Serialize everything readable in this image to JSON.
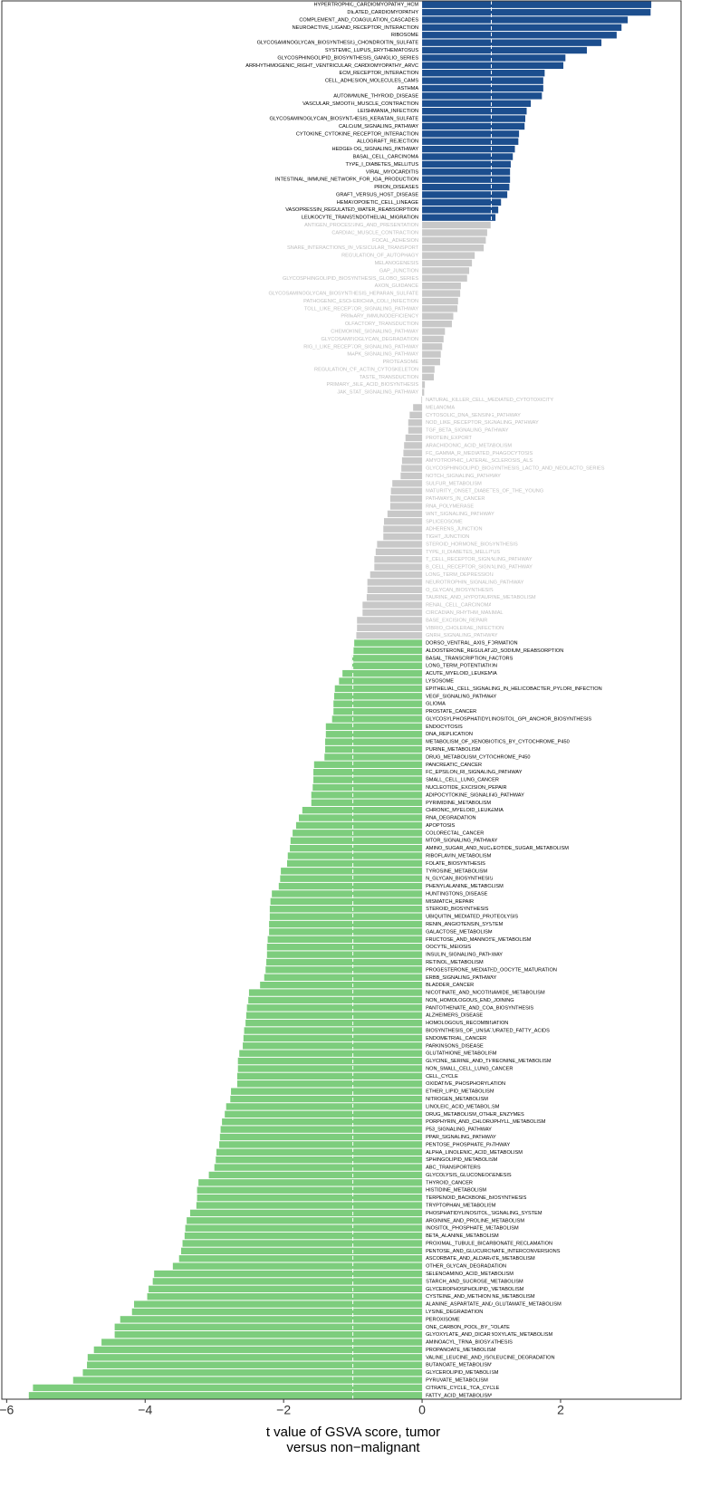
{
  "chart_data": {
    "type": "barh",
    "xlabel": [
      "t value of GSVA score, tumor",
      "versus non−malignant"
    ],
    "xlim": [
      -6.07,
      3.74
    ],
    "xticks": [
      {
        "value": -6,
        "label": "−6"
      },
      {
        "value": -4,
        "label": "−4"
      },
      {
        "value": -2,
        "label": "−2"
      },
      0,
      2
    ],
    "reference_lines": [
      -1,
      1
    ],
    "categories": [
      "HYPERTROPHIC_CARDIOMYOPATHY_HCM",
      "DILATED_CARDIOMYOPATHY",
      "COMPLEMENT_AND_COAGULATION_CASCADES",
      "NEUROACTIVE_LIGAND_RECEPTOR_INTERACTION",
      "RIBOSOME",
      "GLYCOSAMINOGLYCAN_BIOSYNTHESIS_CHONDROITIN_SULFATE",
      "SYSTEMIC_LUPUS_ERYTHEMATOSUS",
      "GLYCOSPHINGOLIPID_BIOSYNTHESIS_GANGLIO_SERIES",
      "ARRHYTHMOGENIC_RIGHT_VENTRICULAR_CARDIOMYOPATHY_ARVC",
      "ECM_RECEPTOR_INTERACTION",
      "CELL_ADHESION_MOLECULES_CAMS",
      "ASTHMA",
      "AUTOIMMUNE_THYROID_DISEASE",
      "VASCULAR_SMOOTH_MUSCLE_CONTRACTION",
      "LEISHMANIA_INFECTION",
      "GLYCOSAMINOGLYCAN_BIOSYNTHESIS_KERATAN_SULFATE",
      "CALCIUM_SIGNALING_PATHWAY",
      "CYTOKINE_CYTOKINE_RECEPTOR_INTERACTION",
      "ALLOGRAFT_REJECTION",
      "HEDGEHOG_SIGNALING_PATHWAY",
      "BASAL_CELL_CARCINOMA",
      "TYPE_I_DIABETES_MELLITUS",
      "VIRAL_MYOCARDITIS",
      "INTESTINAL_IMMUNE_NETWORK_FOR_IGA_PRODUCTION",
      "PRION_DISEASES",
      "GRAFT_VERSUS_HOST_DISEASE",
      "HEMATOPOIETIC_CELL_LINEAGE",
      "VASOPRESSIN_REGULATED_WATER_REABSORPTION",
      "LEUKOCYTE_TRANSENDOTHELIAL_MIGRATION",
      "ANTIGEN_PROCESSING_AND_PRESENTATION",
      "CARDIAC_MUSCLE_CONTRACTION",
      "FOCAL_ADHESION",
      "SNARE_INTERACTIONS_IN_VESICULAR_TRANSPORT",
      "REGULATION_OF_AUTOPHAGY",
      "MELANOGENESIS",
      "GAP_JUNCTION",
      "GLYCOSPHINGOLIPID_BIOSYNTHESIS_GLOBO_SERIES",
      "AXON_GUIDANCE",
      "GLYCOSAMINOGLYCAN_BIOSYNTHESIS_HEPARAN_SULFATE",
      "PATHOGENIC_ESCHERICHIA_COLI_INFECTION",
      "TOLL_LIKE_RECEPTOR_SIGNALING_PATHWAY",
      "PRIMARY_IMMUNODEFICIENCY",
      "OLFACTORY_TRANSDUCTION",
      "CHEMOKINE_SIGNALING_PATHWAY",
      "GLYCOSAMINOGLYCAN_DEGRADATION",
      "RIG_I_LIKE_RECEPTOR_SIGNALING_PATHWAY",
      "MAPK_SIGNALING_PATHWAY",
      "PROTEASOME",
      "REGULATION_OF_ACTIN_CYTOSKELETON",
      "TASTE_TRANSDUCTION",
      "PRIMARY_BILE_ACID_BIOSYNTHESIS",
      "JAK_STAT_SIGNALING_PATHWAY",
      "NATURAL_KILLER_CELL_MEDIATED_CYTOTOXICITY",
      "MELANOMA",
      "CYTOSOLIC_DNA_SENSING_PATHWAY",
      "NOD_LIKE_RECEPTOR_SIGNALING_PATHWAY",
      "TGF_BETA_SIGNALING_PATHWAY",
      "PROTEIN_EXPORT",
      "ARACHIDONIC_ACID_METABOLISM",
      "FC_GAMMA_R_MEDIATED_PHAGOCYTOSIS",
      "AMYOTROPHIC_LATERAL_SCLEROSIS_ALS",
      "GLYCOSPHINGOLIPID_BIOSYNTHESIS_LACTO_AND_NEOLACTO_SERIES",
      "NOTCH_SIGNALING_PATHWAY",
      "SULFUR_METABOLISM",
      "MATURITY_ONSET_DIABETES_OF_THE_YOUNG",
      "PATHWAYS_IN_CANCER",
      "RNA_POLYMERASE",
      "WNT_SIGNALING_PATHWAY",
      "SPLICEOSOME",
      "ADHERENS_JUNCTION",
      "TIGHT_JUNCTION",
      "STEROID_HORMONE_BIOSYNTHESIS",
      "TYPE_II_DIABETES_MELLITUS",
      "T_CELL_RECEPTOR_SIGNALING_PATHWAY",
      "B_CELL_RECEPTOR_SIGNALING_PATHWAY",
      "LONG_TERM_DEPRESSION",
      "NEUROTROPHIN_SIGNALING_PATHWAY",
      "O_GLYCAN_BIOSYNTHESIS",
      "TAURINE_AND_HYPOTAURINE_METABOLISM",
      "RENAL_CELL_CARCINOMA",
      "CIRCADIAN_RHYTHM_MAMMAL",
      "BASE_EXCISION_REPAIR",
      "VIBRIO_CHOLERAE_INFECTION",
      "GNRH_SIGNALING_PATHWAY",
      "DORSO_VENTRAL_AXIS_FORMATION",
      "ALDOSTERONE_REGULATED_SODIUM_REABSORPTION",
      "BASAL_TRANSCRIPTION_FACTORS",
      "LONG_TERM_POTENTIATION",
      "ACUTE_MYELOID_LEUKEMIA",
      "LYSOSOME",
      "EPITHELIAL_CELL_SIGNALING_IN_HELICOBACTER_PYLORI_INFECTION",
      "VEGF_SIGNALING_PATHWAY",
      "GLIOMA",
      "PROSTATE_CANCER",
      "GLYCOSYLPHOSPHATIDYLINOSITOL_GPI_ANCHOR_BIOSYNTHESIS",
      "ENDOCYTOSIS",
      "DNA_REPLICATION",
      "METABOLISM_OF_XENOBIOTICS_BY_CYTOCHROME_P450",
      "PURINE_METABOLISM",
      "DRUG_METABOLISM_CYTOCHROME_P450",
      "PANCREATIC_CANCER",
      "FC_EPSILON_RI_SIGNALING_PATHWAY",
      "SMALL_CELL_LUNG_CANCER",
      "NUCLEOTIDE_EXCISION_REPAIR",
      "ADIPOCYTOKINE_SIGNALING_PATHWAY",
      "PYRIMIDINE_METABOLISM",
      "CHRONIC_MYELOID_LEUKEMIA",
      "RNA_DEGRADATION",
      "APOPTOSIS",
      "COLORECTAL_CANCER",
      "MTOR_SIGNALING_PATHWAY",
      "AMINO_SUGAR_AND_NUCLEOTIDE_SUGAR_METABOLISM",
      "RIBOFLAVIN_METABOLISM",
      "FOLATE_BIOSYNTHESIS",
      "TYROSINE_METABOLISM",
      "N_GLYCAN_BIOSYNTHESIS",
      "PHENYLALANINE_METABOLISM",
      "HUNTINGTONS_DISEASE",
      "MISMATCH_REPAIR",
      "STEROID_BIOSYNTHESIS",
      "UBIQUITIN_MEDIATED_PROTEOLYSIS",
      "RENIN_ANGIOTENSIN_SYSTEM",
      "GALACTOSE_METABOLISM",
      "FRUCTOSE_AND_MANNOSE_METABOLISM",
      "OOCYTE_MEIOSIS",
      "INSULIN_SIGNALING_PATHWAY",
      "RETINOL_METABOLISM",
      "PROGESTERONE_MEDIATED_OOCYTE_MATURATION",
      "ERBB_SIGNALING_PATHWAY",
      "BLADDER_CANCER",
      "NICOTINATE_AND_NICOTINAMIDE_METABOLISM",
      "NON_HOMOLOGOUS_END_JOINING",
      "PANTOTHENATE_AND_COA_BIOSYNTHESIS",
      "ALZHEIMERS_DISEASE",
      "HOMOLOGOUS_RECOMBINATION",
      "BIOSYNTHESIS_OF_UNSATURATED_FATTY_ACIDS",
      "ENDOMETRIAL_CANCER",
      "PARKINSONS_DISEASE",
      "GLUTATHIONE_METABOLISM",
      "GLYCINE_SERINE_AND_THREONINE_METABOLISM",
      "NON_SMALL_CELL_LUNG_CANCER",
      "CELL_CYCLE",
      "OXIDATIVE_PHOSPHORYLATION",
      "ETHER_LIPID_METABOLISM",
      "NITROGEN_METABOLISM",
      "LINOLEIC_ACID_METABOLISM",
      "DRUG_METABOLISM_OTHER_ENZYMES",
      "PORPHYRIN_AND_CHLOROPHYLL_METABOLISM",
      "P53_SIGNALING_PATHWAY",
      "PPAR_SIGNALING_PATHWAY",
      "PENTOSE_PHOSPHATE_PATHWAY",
      "ALPHA_LINOLENIC_ACID_METABOLISM",
      "SPHINGOLIPID_METABOLISM",
      "ABC_TRANSPORTERS",
      "GLYCOLYSIS_GLUCONEOGENESIS",
      "THYROID_CANCER",
      "HISTIDINE_METABOLISM",
      "TERPENOID_BACKBONE_BIOSYNTHESIS",
      "TRYPTOPHAN_METABOLISM",
      "PHOSPHATIDYLINOSITOL_SIGNALING_SYSTEM",
      "ARGININE_AND_PROLINE_METABOLISM",
      "INOSITOL_PHOSPHATE_METABOLISM",
      "BETA_ALANINE_METABOLISM",
      "PROXIMAL_TUBULE_BICARBONATE_RECLAMATION",
      "PENTOSE_AND_GLUCURONATE_INTERCONVERSIONS",
      "ASCORBATE_AND_ALDARATE_METABOLISM",
      "OTHER_GLYCAN_DEGRADATION",
      "SELENOAMINO_ACID_METABOLISM",
      "STARCH_AND_SUCROSE_METABOLISM",
      "GLYCEROPHOSPHOLIPID_METABOLISM",
      "CYSTEINE_AND_METHIONINE_METABOLISM",
      "ALANINE_ASPARTATE_AND_GLUTAMATE_METABOLISM",
      "LYSINE_DEGRADATION",
      "PEROXISOME",
      "ONE_CARBON_POOL_BY_FOLATE",
      "GLYOXYLATE_AND_DICARBOXYLATE_METABOLISM",
      "AMINOACYL_TRNA_BIOSYNTHESIS",
      "PROPANOATE_METABOLISM",
      "VALINE_LEUCINE_AND_ISOLEUCINE_DEGRADATION",
      "BUTANOATE_METABOLISM",
      "GLYCEROLIPID_METABOLISM",
      "PYRUVATE_METABOLISM",
      "CITRATE_CYCLE_TCA_CYCLE",
      "FATTY_ACID_METABOLISM"
    ],
    "values": [
      3.31,
      3.3,
      2.97,
      2.88,
      2.81,
      2.59,
      2.38,
      2.07,
      2.04,
      1.77,
      1.75,
      1.75,
      1.73,
      1.57,
      1.51,
      1.49,
      1.48,
      1.4,
      1.39,
      1.34,
      1.31,
      1.28,
      1.27,
      1.27,
      1.26,
      1.23,
      1.14,
      1.1,
      1.06,
      0.99,
      0.94,
      0.92,
      0.89,
      0.76,
      0.72,
      0.68,
      0.65,
      0.56,
      0.55,
      0.52,
      0.51,
      0.45,
      0.43,
      0.33,
      0.31,
      0.29,
      0.27,
      0.26,
      0.18,
      0.17,
      0.04,
      0.03,
      -0.01,
      -0.13,
      -0.18,
      -0.2,
      -0.2,
      -0.24,
      -0.26,
      -0.27,
      -0.29,
      -0.3,
      -0.31,
      -0.43,
      -0.45,
      -0.46,
      -0.46,
      -0.5,
      -0.55,
      -0.56,
      -0.56,
      -0.65,
      -0.67,
      -0.69,
      -0.69,
      -0.75,
      -0.79,
      -0.79,
      -0.8,
      -0.86,
      -0.86,
      -0.94,
      -0.94,
      -0.95,
      -0.98,
      -0.99,
      -1.01,
      -1.01,
      -1.15,
      -1.2,
      -1.26,
      -1.27,
      -1.28,
      -1.28,
      -1.3,
      -1.39,
      -1.39,
      -1.4,
      -1.4,
      -1.41,
      -1.56,
      -1.57,
      -1.57,
      -1.58,
      -1.6,
      -1.6,
      -1.73,
      -1.78,
      -1.82,
      -1.87,
      -1.9,
      -1.91,
      -1.94,
      -1.95,
      -2.04,
      -2.05,
      -2.07,
      -2.17,
      -2.19,
      -2.2,
      -2.2,
      -2.21,
      -2.21,
      -2.23,
      -2.24,
      -2.24,
      -2.25,
      -2.26,
      -2.28,
      -2.34,
      -2.5,
      -2.51,
      -2.53,
      -2.54,
      -2.55,
      -2.57,
      -2.58,
      -2.59,
      -2.64,
      -2.66,
      -2.66,
      -2.67,
      -2.67,
      -2.76,
      -2.77,
      -2.83,
      -2.85,
      -2.89,
      -2.91,
      -2.92,
      -2.93,
      -2.97,
      -2.98,
      -3.0,
      -3.08,
      -3.23,
      -3.25,
      -3.25,
      -3.26,
      -3.35,
      -3.4,
      -3.42,
      -3.43,
      -3.46,
      -3.48,
      -3.51,
      -3.6,
      -3.87,
      -3.89,
      -3.95,
      -3.97,
      -4.16,
      -4.19,
      -4.36,
      -4.44,
      -4.44,
      -4.63,
      -4.74,
      -4.83,
      -4.84,
      -4.9,
      -5.04,
      -5.62,
      -5.68
    ],
    "colors": [
      "#1c4e8e",
      "#1c4e8e",
      "#1c4e8e",
      "#1c4e8e",
      "#1c4e8e",
      "#1c4e8e",
      "#1c4e8e",
      "#1c4e8e",
      "#1c4e8e",
      "#1c4e8e",
      "#1c4e8e",
      "#1c4e8e",
      "#1c4e8e",
      "#1c4e8e",
      "#1c4e8e",
      "#1c4e8e",
      "#1c4e8e",
      "#1c4e8e",
      "#1c4e8e",
      "#1c4e8e",
      "#1c4e8e",
      "#1c4e8e",
      "#1c4e8e",
      "#1c4e8e",
      "#1c4e8e",
      "#1c4e8e",
      "#1c4e8e",
      "#1c4e8e",
      "#1c4e8e",
      "#c8c8c8",
      "#c8c8c8",
      "#c8c8c8",
      "#c8c8c8",
      "#c8c8c8",
      "#c8c8c8",
      "#c8c8c8",
      "#c8c8c8",
      "#c8c8c8",
      "#c8c8c8",
      "#c8c8c8",
      "#c8c8c8",
      "#c8c8c8",
      "#c8c8c8",
      "#c8c8c8",
      "#c8c8c8",
      "#c8c8c8",
      "#c8c8c8",
      "#c8c8c8",
      "#c8c8c8",
      "#c8c8c8",
      "#c8c8c8",
      "#c8c8c8",
      "#c8c8c8",
      "#c8c8c8",
      "#c8c8c8",
      "#c8c8c8",
      "#c8c8c8",
      "#c8c8c8",
      "#c8c8c8",
      "#c8c8c8",
      "#c8c8c8",
      "#c8c8c8",
      "#c8c8c8",
      "#c8c8c8",
      "#c8c8c8",
      "#c8c8c8",
      "#c8c8c8",
      "#c8c8c8",
      "#c8c8c8",
      "#c8c8c8",
      "#c8c8c8",
      "#c8c8c8",
      "#c8c8c8",
      "#c8c8c8",
      "#c8c8c8",
      "#c8c8c8",
      "#c8c8c8",
      "#c8c8c8",
      "#c8c8c8",
      "#c8c8c8",
      "#c8c8c8",
      "#c8c8c8",
      "#c8c8c8",
      "#c8c8c8",
      "#7dcd7d",
      "#7dcd7d",
      "#7dcd7d",
      "#7dcd7d",
      "#7dcd7d",
      "#7dcd7d",
      "#7dcd7d",
      "#7dcd7d",
      "#7dcd7d",
      "#7dcd7d",
      "#7dcd7d",
      "#7dcd7d",
      "#7dcd7d",
      "#7dcd7d",
      "#7dcd7d",
      "#7dcd7d",
      "#7dcd7d",
      "#7dcd7d",
      "#7dcd7d",
      "#7dcd7d",
      "#7dcd7d",
      "#7dcd7d",
      "#7dcd7d",
      "#7dcd7d",
      "#7dcd7d",
      "#7dcd7d",
      "#7dcd7d",
      "#7dcd7d",
      "#7dcd7d",
      "#7dcd7d",
      "#7dcd7d",
      "#7dcd7d",
      "#7dcd7d",
      "#7dcd7d",
      "#7dcd7d",
      "#7dcd7d",
      "#7dcd7d",
      "#7dcd7d",
      "#7dcd7d",
      "#7dcd7d",
      "#7dcd7d",
      "#7dcd7d",
      "#7dcd7d",
      "#7dcd7d",
      "#7dcd7d",
      "#7dcd7d",
      "#7dcd7d",
      "#7dcd7d",
      "#7dcd7d",
      "#7dcd7d",
      "#7dcd7d",
      "#7dcd7d",
      "#7dcd7d",
      "#7dcd7d",
      "#7dcd7d",
      "#7dcd7d",
      "#7dcd7d",
      "#7dcd7d",
      "#7dcd7d",
      "#7dcd7d",
      "#7dcd7d",
      "#7dcd7d",
      "#7dcd7d",
      "#7dcd7d",
      "#7dcd7d",
      "#7dcd7d",
      "#7dcd7d",
      "#7dcd7d",
      "#7dcd7d",
      "#7dcd7d",
      "#7dcd7d",
      "#7dcd7d",
      "#7dcd7d",
      "#7dcd7d",
      "#7dcd7d",
      "#7dcd7d",
      "#7dcd7d",
      "#7dcd7d",
      "#7dcd7d",
      "#7dcd7d",
      "#7dcd7d",
      "#7dcd7d",
      "#7dcd7d",
      "#7dcd7d",
      "#7dcd7d",
      "#7dcd7d",
      "#7dcd7d",
      "#7dcd7d",
      "#7dcd7d",
      "#7dcd7d",
      "#7dcd7d",
      "#7dcd7d",
      "#7dcd7d",
      "#7dcd7d",
      "#7dcd7d",
      "#7dcd7d",
      "#7dcd7d",
      "#7dcd7d",
      "#7dcd7d",
      "#7dcd7d"
    ]
  }
}
